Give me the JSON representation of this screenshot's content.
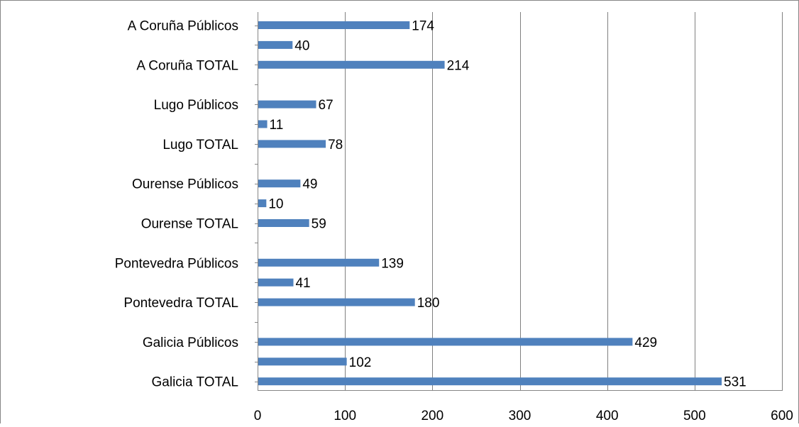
{
  "chart_data": {
    "type": "bar",
    "orientation": "horizontal",
    "title": "",
    "xlabel": "",
    "ylabel": "",
    "xlim": [
      0,
      600
    ],
    "xticks": [
      0,
      100,
      200,
      300,
      400,
      500,
      600
    ],
    "grid": "vertical",
    "legend": "none",
    "bar_color": "#4F81BD",
    "gridline_color": "#808080",
    "rows": [
      {
        "label": "A Coruña Públicos",
        "value": 174
      },
      {
        "label": "",
        "value": 40
      },
      {
        "label": "A Coruña TOTAL",
        "value": 214
      },
      {
        "label": "",
        "value": null
      },
      {
        "label": "Lugo Públicos",
        "value": 67
      },
      {
        "label": "",
        "value": 11
      },
      {
        "label": "Lugo TOTAL",
        "value": 78
      },
      {
        "label": "",
        "value": null
      },
      {
        "label": "Ourense Públicos",
        "value": 49
      },
      {
        "label": "",
        "value": 10
      },
      {
        "label": "Ourense TOTAL",
        "value": 59
      },
      {
        "label": "",
        "value": null
      },
      {
        "label": "Pontevedra Públicos",
        "value": 139
      },
      {
        "label": "",
        "value": 41
      },
      {
        "label": "Pontevedra TOTAL",
        "value": 180
      },
      {
        "label": "",
        "value": null
      },
      {
        "label": "Galicia Públicos",
        "value": 429
      },
      {
        "label": "",
        "value": 102
      },
      {
        "label": "Galicia TOTAL",
        "value": 531
      }
    ]
  }
}
